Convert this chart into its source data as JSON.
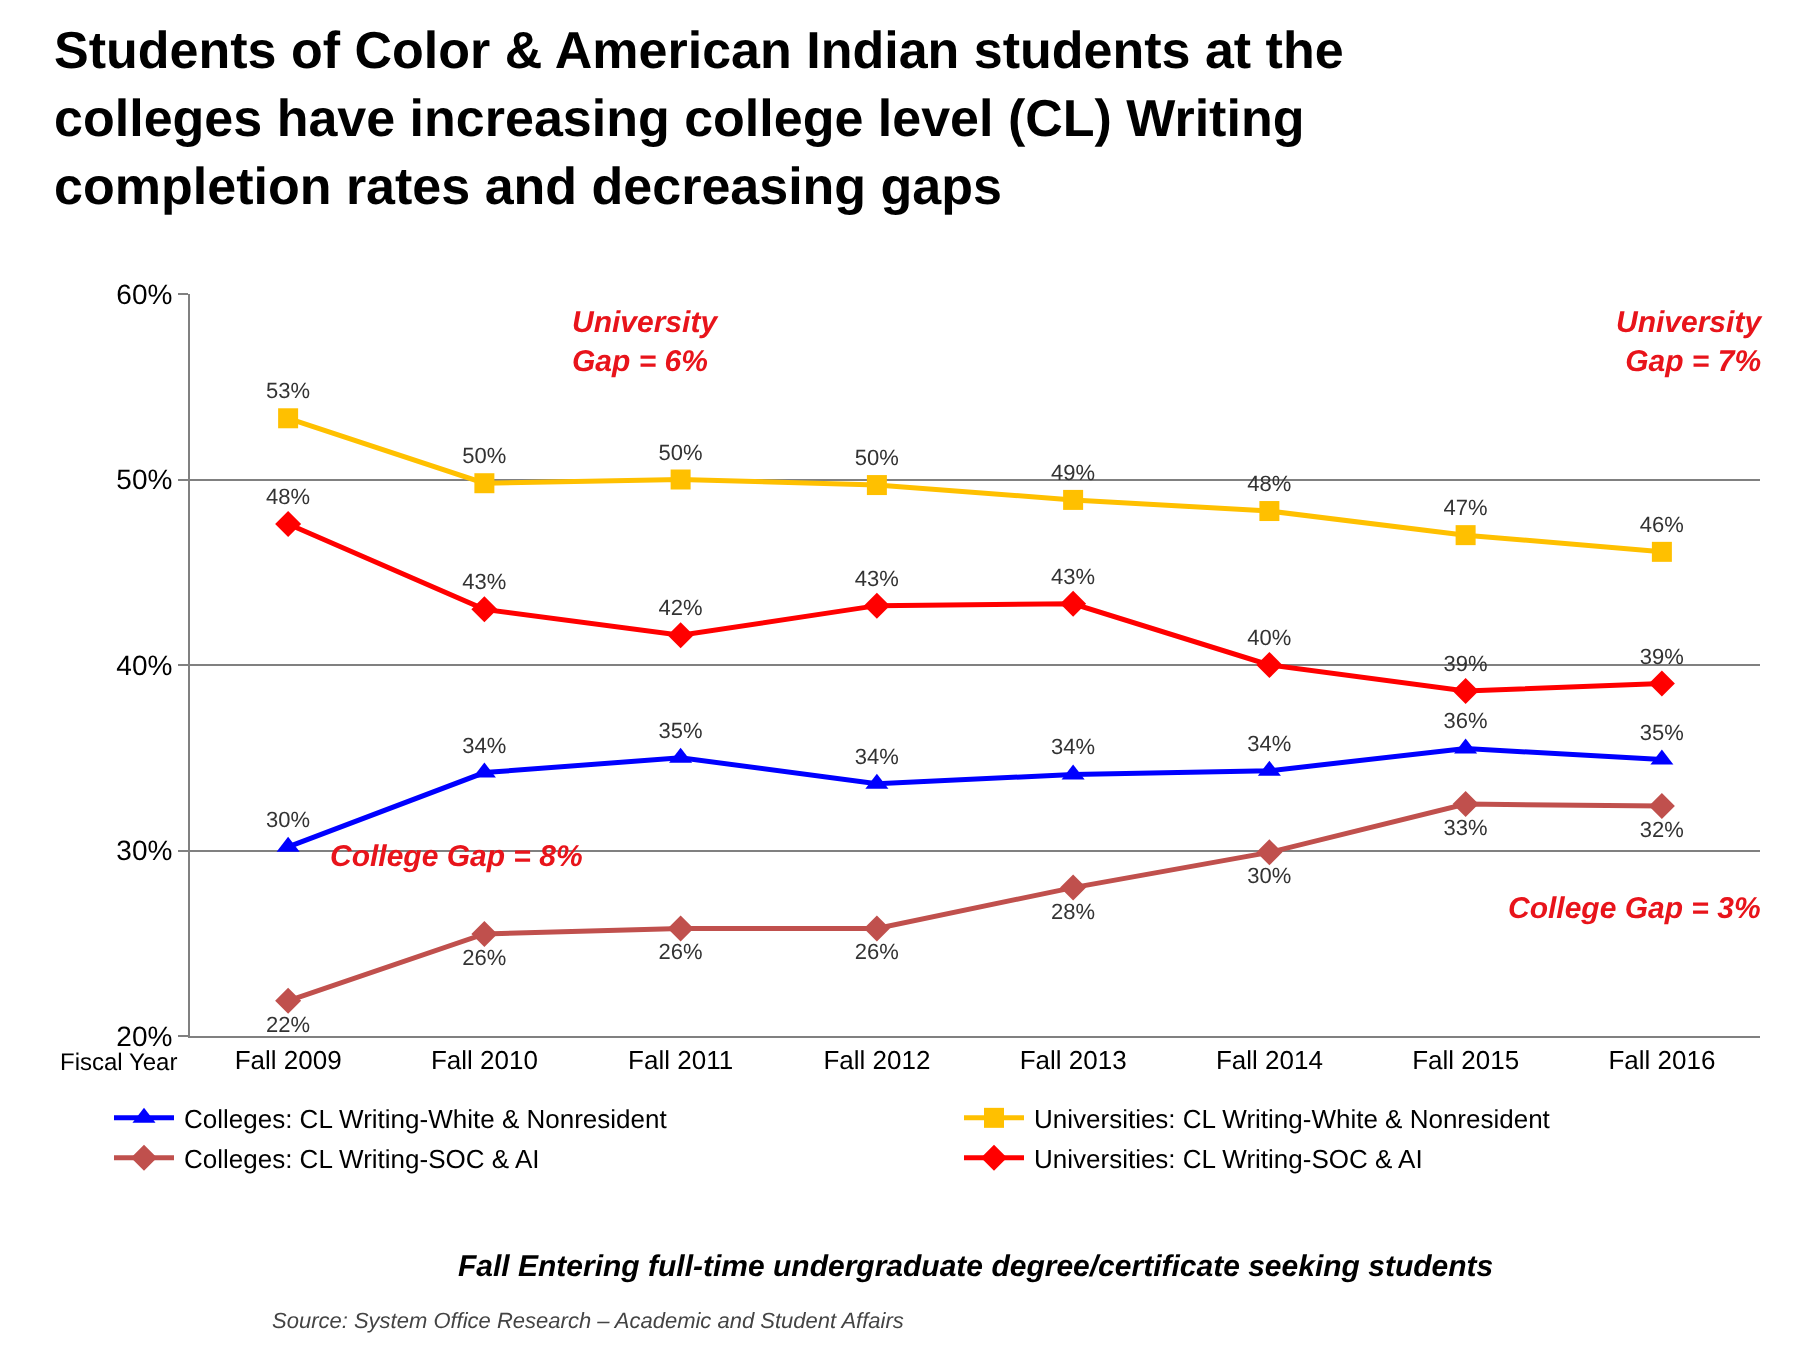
{
  "chart_data": {
    "type": "line",
    "title": "Students of Color & American Indian students at the colleges have increasing college level (CL) Writing completion rates and decreasing gaps",
    "xlabel": "Fiscal Year",
    "categories": [
      "Fall 2009",
      "Fall 2010",
      "Fall 2011",
      "Fall 2012",
      "Fall 2013",
      "Fall 2014",
      "Fall 2015",
      "Fall 2016"
    ],
    "series": [
      {
        "name": "Colleges: CL Writing-White & Nonresident",
        "color": "#0000ff",
        "marker": "triangle",
        "values": [
          30.2,
          34.2,
          35.0,
          33.6,
          34.1,
          34.3,
          35.5,
          34.9
        ],
        "value_labels": [
          "30%",
          "34%",
          "35%",
          "34%",
          "34%",
          "34%",
          "36%",
          "35%"
        ]
      },
      {
        "name": "Universities: CL Writing-White & Nonresident",
        "color": "#ffc000",
        "marker": "square",
        "values": [
          53.3,
          49.8,
          50.0,
          49.7,
          48.9,
          48.3,
          47.0,
          46.1
        ],
        "value_labels": [
          "53%",
          "50%",
          "50%",
          "50%",
          "49%",
          "48%",
          "47%",
          "46%"
        ]
      },
      {
        "name": "Colleges: CL Writing-SOC & AI",
        "color": "#c0504d",
        "marker": "diamond",
        "values": [
          21.9,
          25.5,
          25.8,
          25.8,
          28.0,
          29.9,
          32.5,
          32.4
        ],
        "value_labels": [
          "22%",
          "26%",
          "26%",
          "26%",
          "28%",
          "30%",
          "33%",
          "32%"
        ]
      },
      {
        "name": "Universities: CL Writing-SOC & AI",
        "color": "#ff0000",
        "marker": "diamond",
        "values": [
          47.6,
          43.0,
          41.6,
          43.2,
          43.3,
          40.0,
          38.6,
          39.0
        ],
        "value_labels": [
          "48%",
          "43%",
          "42%",
          "43%",
          "43%",
          "40%",
          "39%",
          "39%"
        ]
      }
    ],
    "ylim": [
      20,
      60
    ],
    "yticks": [
      {
        "value": 20,
        "label": "20%"
      },
      {
        "value": 30,
        "label": "30%"
      },
      {
        "value": 40,
        "label": "40%"
      },
      {
        "value": 50,
        "label": "50%"
      },
      {
        "value": 60,
        "label": "60%"
      }
    ],
    "grid": "y",
    "legend": "bottom",
    "line_style": "solid",
    "annotations": [
      "University\nGap = 6%",
      "University\nGap = 7%",
      "College Gap = 8%",
      "College Gap = 3%",
      "Fall Entering full-time undergraduate degree/certificate seeking students",
      "Source: System Office Research – Academic and Student Affairs"
    ]
  }
}
